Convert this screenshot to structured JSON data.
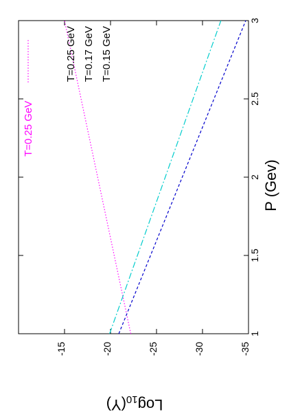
{
  "chart_data": {
    "type": "line",
    "xlabel": "P (Gev)",
    "ylabel": "Log10(Y)",
    "ylabel_base": "Log",
    "ylabel_sub": "10",
    "ylabel_arg": "(Y)",
    "xlim": [
      1,
      3
    ],
    "ylim": [
      -35,
      -10
    ],
    "xticks": [
      1,
      1.5,
      2,
      2.5,
      3
    ],
    "xtick_labels": [
      "1",
      "1.5",
      "2",
      "2.5",
      "3"
    ],
    "yticks": [
      -15,
      -20,
      -25,
      -30,
      -35
    ],
    "ytick_labels": [
      "-15",
      "-20",
      "-25",
      "-30",
      "-35"
    ],
    "grid": false,
    "legend_placement": "top-left",
    "series": [
      {
        "name": "T=0.25 GeV",
        "color": "#ff00ff",
        "dash": "dotted",
        "x": [
          1,
          3
        ],
        "y": [
          -22.2,
          -15.0
        ]
      },
      {
        "name": "T=0.17 GeV",
        "color": "#00cccc",
        "dash": "dashdot",
        "x": [
          1,
          3
        ],
        "y": [
          -19.9,
          -32.0
        ]
      },
      {
        "name": "T=0.15 GeV",
        "color": "#0000cc",
        "dash": "dashed",
        "x": [
          1,
          3
        ],
        "y": [
          -20.9,
          -34.7
        ]
      }
    ],
    "annotations": [
      "T=0.25 GeV",
      "T=0.17 GeV",
      "T=0.15 GeV"
    ]
  }
}
